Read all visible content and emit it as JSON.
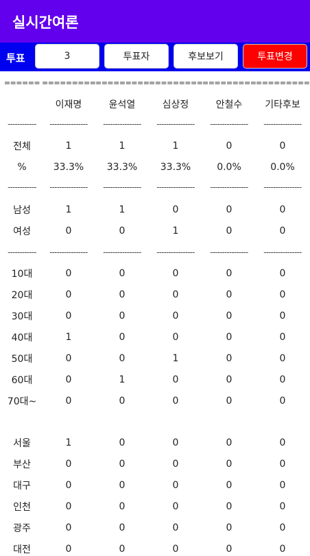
{
  "header": {
    "title": "실시간여론"
  },
  "toolbar": {
    "label": "투표",
    "count": "3",
    "buttons": [
      "투표자",
      "후보보기",
      "투표변경"
    ]
  },
  "table": {
    "rows": [
      [
        "======",
        "=========",
        "=========",
        "=========",
        "=========",
        "========="
      ],
      [
        "",
        "이재명",
        "윤석열",
        "심상정",
        "안철수",
        "기타후보"
      ],
      [
        "------------",
        "----------------",
        "----------------",
        "----------------",
        "----------------",
        "----------------"
      ],
      [
        "전체",
        "1",
        "1",
        "1",
        "0",
        "0"
      ],
      [
        "%",
        "33.3%",
        "33.3%",
        "33.3%",
        "0.0%",
        "0.0%"
      ],
      [
        "------------",
        "----------------",
        "----------------",
        "----------------",
        "----------------",
        "----------------"
      ],
      [
        "남성",
        "1",
        "1",
        "0",
        "0",
        "0"
      ],
      [
        "여성",
        "0",
        "0",
        "1",
        "0",
        "0"
      ],
      [
        "------------",
        "----------------",
        "----------------",
        "----------------",
        "----------------",
        "----------------"
      ],
      [
        "10대",
        "0",
        "0",
        "0",
        "0",
        "0"
      ],
      [
        "20대",
        "0",
        "0",
        "0",
        "0",
        "0"
      ],
      [
        "30대",
        "0",
        "0",
        "0",
        "0",
        "0"
      ],
      [
        "40대",
        "1",
        "0",
        "0",
        "0",
        "0"
      ],
      [
        "50대",
        "0",
        "0",
        "1",
        "0",
        "0"
      ],
      [
        "60대",
        "0",
        "1",
        "0",
        "0",
        "0"
      ],
      [
        "70대~",
        "0",
        "0",
        "0",
        "0",
        "0"
      ],
      [
        "서울",
        "1",
        "0",
        "0",
        "0",
        "0"
      ],
      [
        "부산",
        "0",
        "0",
        "0",
        "0",
        "0"
      ],
      [
        "대구",
        "0",
        "0",
        "0",
        "0",
        "0"
      ],
      [
        "인천",
        "0",
        "0",
        "0",
        "0",
        "0"
      ],
      [
        "광주",
        "0",
        "0",
        "0",
        "0",
        "0"
      ],
      [
        "대전",
        "0",
        "0",
        "0",
        "0",
        "0"
      ]
    ]
  }
}
